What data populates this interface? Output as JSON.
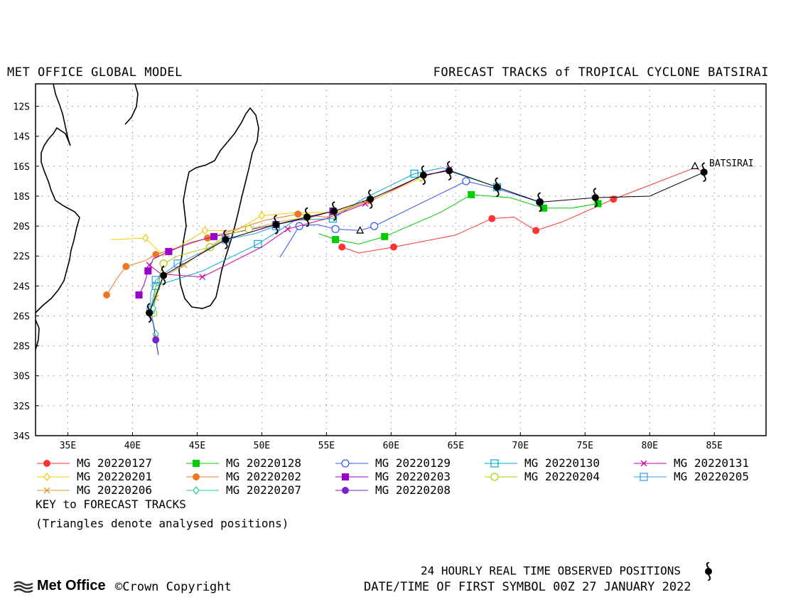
{
  "header": {
    "left_title": "MET OFFICE GLOBAL MODEL",
    "right_title": "FORECAST TRACKS of TROPICAL CYCLONE BATSIRAI"
  },
  "chart_data": {
    "type": "scatter",
    "storm_label": "BATSIRAI",
    "xlim": [
      32.5,
      89
    ],
    "ylim": [
      -34,
      -10.5
    ],
    "x_ticks": [
      "35E",
      "40E",
      "45E",
      "50E",
      "55E",
      "60E",
      "65E",
      "70E",
      "75E",
      "80E",
      "85E"
    ],
    "y_ticks": [
      "12S",
      "14S",
      "16S",
      "18S",
      "20S",
      "22S",
      "24S",
      "26S",
      "28S",
      "30S",
      "32S",
      "34S"
    ],
    "grid": true,
    "observed_track": [
      [
        84.2,
        -16.4
      ],
      [
        80,
        -18
      ],
      [
        75.8,
        -18.1
      ],
      [
        71.5,
        -18.4
      ],
      [
        68.2,
        -17.4
      ],
      [
        64.5,
        -16.3
      ],
      [
        62.5,
        -16.6
      ],
      [
        58.4,
        -18.2
      ],
      [
        55.6,
        -19
      ],
      [
        53.5,
        -19.4
      ],
      [
        51.1,
        -19.9
      ],
      [
        47.2,
        -20.9
      ],
      [
        42.4,
        -23.3
      ],
      [
        41.3,
        -25.8
      ]
    ],
    "analysed_positions": [
      [
        83.5,
        -16
      ],
      [
        57.6,
        -20.3
      ]
    ],
    "series": [
      {
        "name": "MG 20220127",
        "color": "#ff3333",
        "marker": "circle-filled",
        "points": [
          [
            84.2,
            -16.4
          ],
          [
            83.5,
            -16.1
          ],
          [
            77.2,
            -18.2
          ],
          [
            73.3,
            -19.7
          ],
          [
            71.2,
            -20.3
          ],
          [
            69.5,
            -19.4
          ],
          [
            67.8,
            -19.5
          ],
          [
            65,
            -20.6
          ],
          [
            60.2,
            -21.4
          ],
          [
            57.5,
            -21.8
          ],
          [
            56.2,
            -21.4
          ]
        ]
      },
      {
        "name": "MG 20220128",
        "color": "#00cc00",
        "marker": "square-filled",
        "points": [
          [
            76,
            -18.5
          ],
          [
            74,
            -18.8
          ],
          [
            71.8,
            -18.8
          ],
          [
            69.2,
            -18.1
          ],
          [
            66.2,
            -17.9
          ],
          [
            63.8,
            -19.1
          ],
          [
            59.5,
            -20.7
          ],
          [
            57.5,
            -21.2
          ],
          [
            55.7,
            -20.9
          ],
          [
            54.4,
            -20.5
          ]
        ]
      },
      {
        "name": "MG 20220129",
        "color": "#3355ee",
        "marker": "circle-open",
        "points": [
          [
            71.5,
            -18.4
          ],
          [
            68.2,
            -17.5
          ],
          [
            65.8,
            -17
          ],
          [
            63.2,
            -18.1
          ],
          [
            58.7,
            -20
          ],
          [
            57.6,
            -20.3
          ],
          [
            55.7,
            -20.2
          ],
          [
            54.3,
            -19.9
          ],
          [
            52.9,
            -20
          ],
          [
            51.4,
            -22.1
          ]
        ]
      },
      {
        "name": "MG 20220130",
        "color": "#00aacc",
        "marker": "square-open",
        "points": [
          [
            68.2,
            -17.4
          ],
          [
            64,
            -16.1
          ],
          [
            61.8,
            -16.5
          ],
          [
            57.8,
            -18.2
          ],
          [
            55.5,
            -19.5
          ],
          [
            52.6,
            -19.6
          ],
          [
            49.7,
            -21.2
          ],
          [
            45.4,
            -23
          ],
          [
            41.8,
            -24
          ],
          [
            41.3,
            -26
          ]
        ]
      },
      {
        "name": "MG 20220131",
        "color": "#cc00aa",
        "marker": "x",
        "points": [
          [
            64.5,
            -16.2
          ],
          [
            62,
            -16.8
          ],
          [
            58,
            -18.5
          ],
          [
            55,
            -19.5
          ],
          [
            52,
            -20.2
          ],
          [
            50,
            -21.4
          ],
          [
            45.4,
            -23.4
          ],
          [
            42.2,
            -23.2
          ],
          [
            41.3,
            -22.6
          ]
        ]
      },
      {
        "name": "MG 20220201",
        "color": "#eecc00",
        "marker": "diamond-open",
        "points": [
          [
            62.3,
            -16.8
          ],
          [
            58.4,
            -18.3
          ],
          [
            55.5,
            -19.1
          ],
          [
            52.7,
            -19.1
          ],
          [
            50,
            -19.3
          ],
          [
            48,
            -20.3
          ],
          [
            45.6,
            -20.3
          ],
          [
            42.4,
            -22
          ],
          [
            41,
            -20.8
          ],
          [
            38.3,
            -20.9
          ]
        ]
      },
      {
        "name": "MG 20220202",
        "color": "#ee7722",
        "marker": "circle-filled",
        "points": [
          [
            58.3,
            -18.3
          ],
          [
            55,
            -19.4
          ],
          [
            52.8,
            -19.2
          ],
          [
            50.3,
            -19.6
          ],
          [
            45.8,
            -20.8
          ],
          [
            44,
            -21.3
          ],
          [
            41.8,
            -21.9
          ],
          [
            41,
            -22.3
          ],
          [
            39.5,
            -22.7
          ],
          [
            38.8,
            -23.5
          ],
          [
            38,
            -24.6
          ]
        ]
      },
      {
        "name": "MG 20220203",
        "color": "#9900cc",
        "marker": "square-filled",
        "points": [
          [
            55.5,
            -19
          ],
          [
            53.4,
            -19.5
          ],
          [
            51.1,
            -19.9
          ],
          [
            47.5,
            -20.5
          ],
          [
            46.3,
            -20.7
          ],
          [
            44.5,
            -21.1
          ],
          [
            42.8,
            -21.7
          ],
          [
            41.6,
            -22.2
          ],
          [
            41.2,
            -23
          ],
          [
            40.9,
            -23.9
          ],
          [
            40.5,
            -24.6
          ]
        ]
      },
      {
        "name": "MG 20220204",
        "color": "#aacc00",
        "marker": "circle-open",
        "points": [
          [
            53.5,
            -19.4
          ],
          [
            51.5,
            -19.7
          ],
          [
            49,
            -20.2
          ],
          [
            47.2,
            -20.6
          ],
          [
            46,
            -21.4
          ],
          [
            43.5,
            -22
          ],
          [
            42.4,
            -22.5
          ],
          [
            41.8,
            -24
          ],
          [
            41.6,
            -25.8
          ]
        ]
      },
      {
        "name": "MG 20220205",
        "color": "#3399ee",
        "marker": "square-open",
        "points": [
          [
            51.1,
            -20
          ],
          [
            49.5,
            -20.5
          ],
          [
            47.2,
            -20.9
          ],
          [
            45.5,
            -21.7
          ],
          [
            43.5,
            -22.5
          ],
          [
            42.4,
            -23.2
          ],
          [
            41.8,
            -23.6
          ],
          [
            41.4,
            -24.5
          ],
          [
            41.4,
            -25.6
          ]
        ]
      },
      {
        "name": "MG 20220206",
        "color": "#dd9933",
        "marker": "x",
        "points": [
          [
            47.2,
            -20.8
          ],
          [
            45.8,
            -21.5
          ],
          [
            44,
            -22.6
          ],
          [
            42.4,
            -23.4
          ],
          [
            41.8,
            -24.8
          ],
          [
            41.5,
            -26
          ],
          [
            41.8,
            -27.5
          ],
          [
            42,
            -28.6
          ]
        ]
      },
      {
        "name": "MG 20220207",
        "color": "#22cc99",
        "marker": "diamond-open",
        "points": [
          [
            42.4,
            -23.3
          ],
          [
            41.9,
            -24.3
          ],
          [
            41.6,
            -25.5
          ],
          [
            41.5,
            -26
          ],
          [
            41.8,
            -27.2
          ],
          [
            42,
            -28.6
          ]
        ]
      },
      {
        "name": "MG 20220208",
        "color": "#7722cc",
        "marker": "circle-filled",
        "points": [
          [
            41.3,
            -25.8
          ],
          [
            41.6,
            -26.5
          ],
          [
            41.8,
            -27.6
          ],
          [
            42,
            -28.6
          ]
        ]
      }
    ]
  },
  "key": {
    "line1": "KEY to FORECAST TRACKS",
    "line2": "(Triangles denote analysed positions)"
  },
  "footer": {
    "observed_label": "24 HOURLY REAL TIME OBSERVED POSITIONS",
    "datetime_label": "DATE/TIME OF FIRST SYMBOL 00Z 27 JANUARY 2022",
    "logo_text": "Met Office",
    "copyright": "©Crown Copyright"
  }
}
